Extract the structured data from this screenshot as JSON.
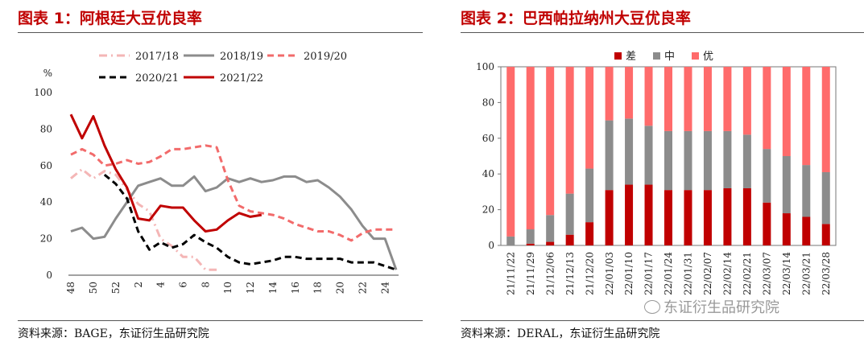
{
  "watermark": "东证衍生品研究院",
  "colors": {
    "title": "#c00000",
    "bad": "#c00000",
    "mid": "#8c8c8c",
    "good": "#ff6b6b"
  },
  "chart_data": [
    {
      "type": "line",
      "panel_title": "图表 1：阿根廷大豆优良率",
      "source": "资料来源：BAGE，东证衍生品研究院",
      "ylabel": "%",
      "ylim": [
        0,
        100
      ],
      "yticks": [
        0,
        20,
        40,
        60,
        80,
        100
      ],
      "x_positions": [
        48,
        49,
        50,
        51,
        52,
        1,
        2,
        3,
        4,
        5,
        6,
        7,
        8,
        9,
        10,
        11,
        12,
        13,
        14,
        15,
        16,
        17,
        18,
        19,
        20,
        21,
        22,
        23,
        24,
        25
      ],
      "xtick_labels": [
        "48",
        "50",
        "52",
        "2",
        "4",
        "6",
        "8",
        "10",
        "12",
        "14",
        "16",
        "18",
        "20",
        "22",
        "24"
      ],
      "legend_position": "top",
      "series": [
        {
          "name": "2017/18",
          "color": "#f4b6b6",
          "dash": "dashdot",
          "values": [
            53,
            58,
            53,
            57,
            55,
            47,
            39,
            35,
            20,
            16,
            10,
            10,
            3,
            3,
            null,
            null,
            null,
            null,
            null,
            null,
            null,
            null,
            null,
            null,
            null,
            null,
            null,
            null,
            null,
            null
          ]
        },
        {
          "name": "2018/19",
          "color": "#8c8c8c",
          "dash": "solid",
          "values": [
            24,
            26,
            20,
            21,
            31,
            40,
            49,
            51,
            53,
            49,
            49,
            54,
            46,
            48,
            53,
            51,
            53,
            51,
            52,
            54,
            54,
            51,
            52,
            48,
            43,
            36,
            27,
            20,
            20,
            3
          ]
        },
        {
          "name": "2019/20",
          "color": "#f26b6b",
          "dash": "dashed",
          "values": [
            66,
            69,
            66,
            60,
            61,
            63,
            61,
            62,
            65,
            69,
            69,
            70,
            71,
            70,
            52,
            38,
            35,
            34,
            33,
            31,
            28,
            26,
            24,
            24,
            22,
            19,
            23,
            25,
            25,
            25
          ]
        },
        {
          "name": "2020/21",
          "color": "#000000",
          "dash": "dashed",
          "values": [
            null,
            null,
            null,
            55,
            50,
            42,
            24,
            14,
            18,
            15,
            17,
            22,
            18,
            15,
            10,
            7,
            6,
            7,
            8,
            10,
            10,
            9,
            9,
            9,
            9,
            7,
            7,
            7,
            5,
            3
          ]
        },
        {
          "name": "2021/22",
          "color": "#c00000",
          "dash": "solid",
          "values": [
            88,
            75,
            87,
            71,
            58,
            48,
            31,
            30,
            38,
            37,
            37,
            30,
            24,
            25,
            30,
            34,
            32,
            33,
            null,
            null,
            null,
            null,
            null,
            null,
            null,
            null,
            null,
            null,
            null,
            null
          ]
        }
      ]
    },
    {
      "type": "bar",
      "stacked": true,
      "panel_title": "图表 2：巴西帕拉纳州大豆优良率",
      "source": "资料来源：DERAL，东证衍生品研究院",
      "ylim": [
        0,
        100
      ],
      "yticks": [
        0,
        20,
        40,
        60,
        80,
        100
      ],
      "legend_position": "top",
      "categories": [
        "21/11/22",
        "21/11/29",
        "21/12/06",
        "21/12/13",
        "21/12/20",
        "22/01/03",
        "22/01/10",
        "22/01/17",
        "22/01/24",
        "22/01/31",
        "22/02/07",
        "22/02/14",
        "22/02/21",
        "22/03/07",
        "22/03/14",
        "22/03/21",
        "22/03/28"
      ],
      "series": [
        {
          "name": "差",
          "color": "#c00000",
          "values": [
            0,
            1,
            2,
            6,
            13,
            31,
            34,
            34,
            31,
            31,
            31,
            32,
            32,
            24,
            18,
            16,
            12
          ]
        },
        {
          "name": "中",
          "color": "#8c8c8c",
          "values": [
            5,
            8,
            15,
            23,
            30,
            39,
            37,
            33,
            33,
            33,
            33,
            32,
            30,
            30,
            32,
            29,
            29
          ]
        },
        {
          "name": "优",
          "color": "#ff6b6b",
          "values": [
            95,
            91,
            83,
            71,
            57,
            30,
            29,
            33,
            36,
            36,
            36,
            36,
            38,
            46,
            50,
            55,
            59
          ]
        }
      ]
    }
  ]
}
